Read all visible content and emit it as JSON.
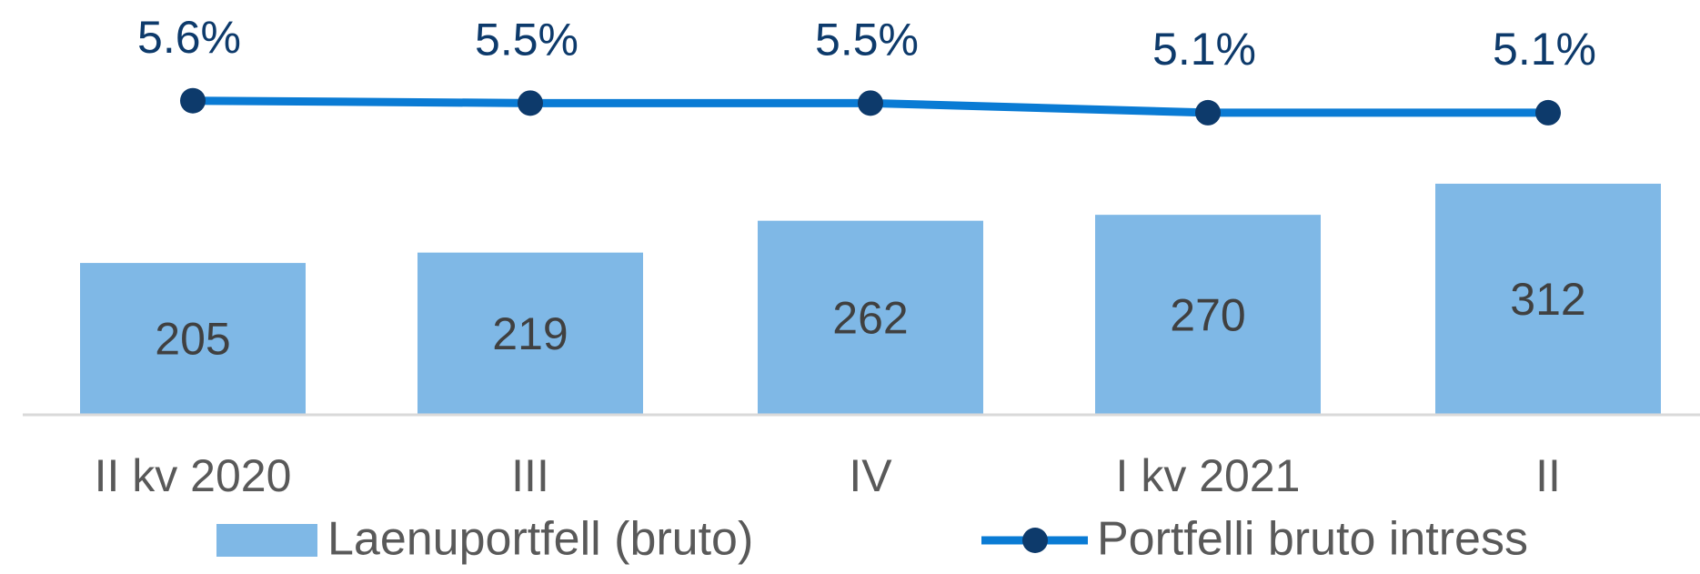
{
  "chart_data": {
    "type": "bar_line",
    "categories": [
      "II kv 2020",
      "III",
      "IV",
      "I kv 2021",
      "II"
    ],
    "series": [
      {
        "name": "Laenuportfell (bruto)",
        "type": "bar",
        "color": "#7fb8e6",
        "values": [
          205,
          219,
          262,
          270,
          312
        ]
      },
      {
        "name": "Portfelli bruto intress",
        "type": "line",
        "axis": "y2",
        "color": "#0a7bd4",
        "marker_color": "#0d3a6b",
        "values": [
          5.6,
          5.5,
          5.5,
          5.1,
          5.1
        ],
        "value_labels": [
          "5.6%",
          "5.5%",
          "5.5%",
          "5.1%",
          "5.1%"
        ]
      }
    ],
    "ylim": [
      0,
      560
    ],
    "y2lim": [
      -7.5,
      9.8
    ],
    "legend": "bottom"
  }
}
